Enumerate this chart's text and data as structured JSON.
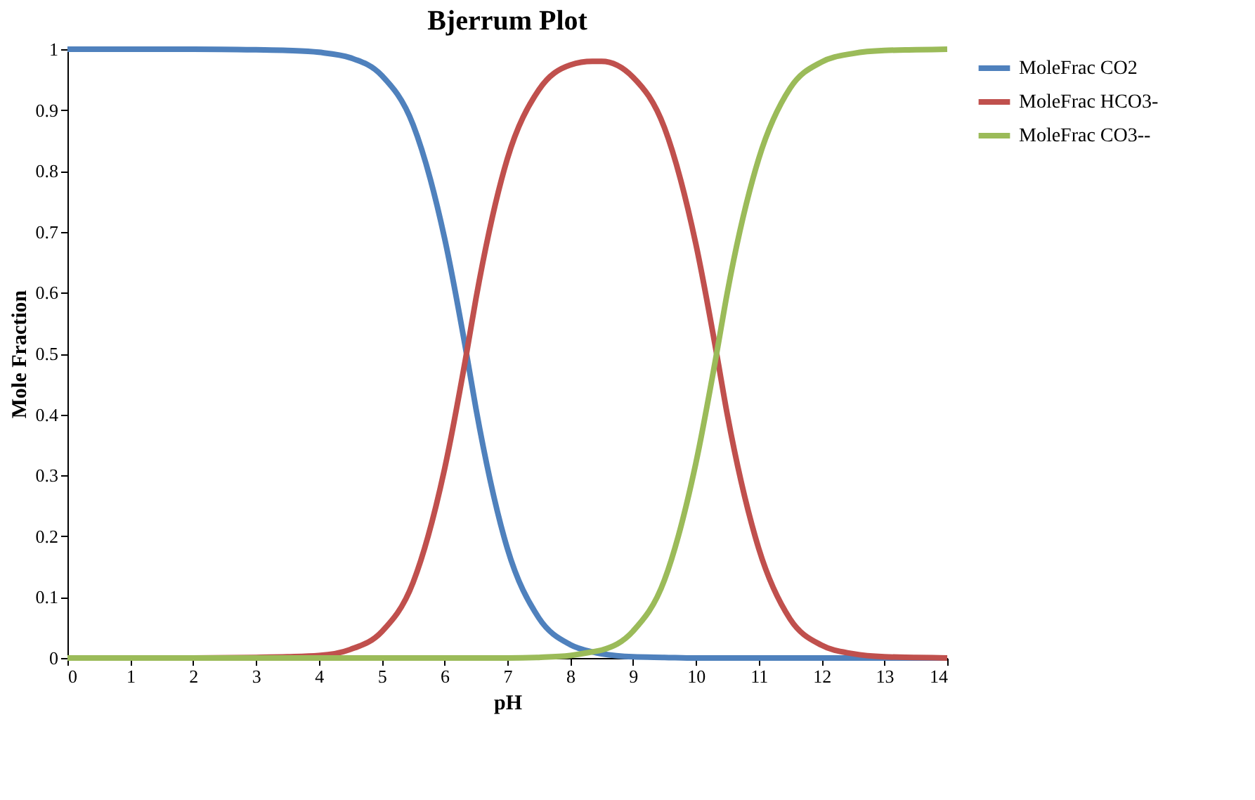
{
  "chart_data": {
    "type": "line",
    "title": "Bjerrum Plot",
    "xlabel": "pH",
    "ylabel": "Mole Fraction",
    "x": [
      0,
      1,
      2,
      3,
      3.5,
      4,
      4.5,
      5,
      5.5,
      6,
      6.35,
      6.5,
      7,
      7.5,
      8,
      8.35,
      8.5,
      9,
      9.5,
      10,
      10.33,
      10.5,
      11,
      11.5,
      12,
      12.5,
      13,
      13.5,
      14
    ],
    "series": [
      {
        "name": "MoleFrac CO2",
        "color": "#4f81bd",
        "values": [
          1,
          1,
          1,
          0.999,
          0.998,
          0.995,
          0.986,
          0.957,
          0.876,
          0.69,
          0.5,
          0.41,
          0.18,
          0.066,
          0.022,
          0.01,
          0.007,
          0.002,
          0.001,
          0,
          0,
          0,
          0,
          0,
          0,
          0,
          0,
          0,
          0
        ]
      },
      {
        "name": "MoleFrac HCO3-",
        "color": "#c0504d",
        "values": [
          null,
          null,
          0,
          0.001,
          0.002,
          0.004,
          0.014,
          0.043,
          0.124,
          0.31,
          0.5,
          0.59,
          0.82,
          0.933,
          0.974,
          0.98,
          0.98,
          0.954,
          0.871,
          0.68,
          0.5,
          0.4,
          0.18,
          0.064,
          0.021,
          0.007,
          0.002,
          0.001,
          0
        ]
      },
      {
        "name": "MoleFrac CO3--",
        "color": "#9bbb59",
        "values": [
          0,
          0,
          0,
          0,
          0,
          0,
          0,
          0,
          0,
          0,
          0,
          0,
          0,
          0.001,
          0.004,
          0.01,
          0.013,
          0.044,
          0.128,
          0.32,
          0.5,
          0.6,
          0.82,
          0.936,
          0.979,
          0.993,
          0.998,
          0.999,
          1
        ]
      }
    ],
    "xlim": [
      0,
      14
    ],
    "xticks": [
      0,
      1,
      2,
      3,
      4,
      5,
      6,
      7,
      8,
      9,
      10,
      11,
      12,
      13,
      14
    ],
    "ylim": [
      0,
      1
    ],
    "yticks": [
      0,
      0.1,
      0.2,
      0.3,
      0.4,
      0.5,
      0.6,
      0.7,
      0.8,
      0.9,
      1
    ],
    "grid": false,
    "legend": "right",
    "marker": "none",
    "line_style": "solid"
  }
}
